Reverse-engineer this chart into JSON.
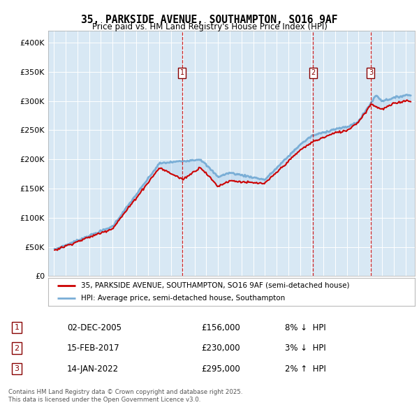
{
  "title": "35, PARKSIDE AVENUE, SOUTHAMPTON, SO16 9AF",
  "subtitle": "Price paid vs. HM Land Registry's House Price Index (HPI)",
  "property_label": "35, PARKSIDE AVENUE, SOUTHAMPTON, SO16 9AF (semi-detached house)",
  "hpi_label": "HPI: Average price, semi-detached house, Southampton",
  "transactions": [
    {
      "num": 1,
      "date": "02-DEC-2005",
      "price": "£156,000",
      "pct": "8%",
      "dir": "↓",
      "year_x": 2005.92
    },
    {
      "num": 2,
      "date": "15-FEB-2017",
      "price": "£230,000",
      "pct": "3%",
      "dir": "↓",
      "year_x": 2017.12
    },
    {
      "num": 3,
      "date": "14-JAN-2022",
      "price": "£295,000",
      "pct": "2%",
      "dir": "↑",
      "year_x": 2022.04
    }
  ],
  "footer_line1": "Contains HM Land Registry data © Crown copyright and database right 2025.",
  "footer_line2": "This data is licensed under the Open Government Licence v3.0.",
  "bg_color": "#d8e8f4",
  "line_color_property": "#cc0000",
  "line_color_hpi": "#7aaed6",
  "fill_color": "#aaccee",
  "ylim": [
    0,
    420000
  ],
  "yticks": [
    0,
    50000,
    100000,
    150000,
    200000,
    250000,
    300000,
    350000,
    400000
  ],
  "xlim_start": 1994.5,
  "xlim_end": 2025.8
}
